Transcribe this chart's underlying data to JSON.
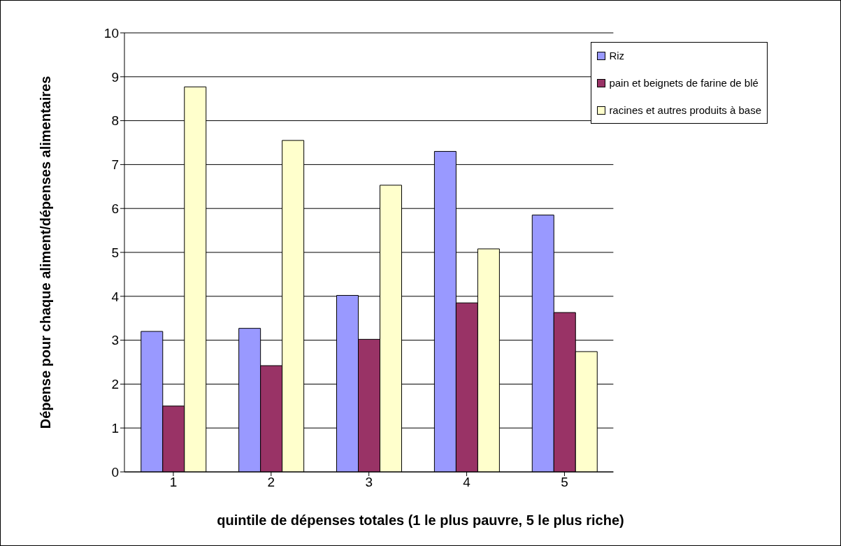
{
  "chart_data": {
    "type": "bar",
    "xlabel": "quintile de dépenses totales (1 le plus pauvre, 5 le plus riche)",
    "ylabel": "Dépense pour chaque aliment/dépenses alimentaires",
    "categories": [
      "1",
      "2",
      "3",
      "4",
      "5"
    ],
    "series": [
      {
        "name": "Riz",
        "color": "#9999ff",
        "values": [
          3.2,
          3.27,
          4.02,
          7.3,
          5.85
        ]
      },
      {
        "name": "pain et beignets de farine de blé",
        "color": "#993366",
        "values": [
          1.5,
          2.42,
          3.02,
          3.85,
          3.63
        ]
      },
      {
        "name": "racines et autres produits à base",
        "color": "#ffffcc",
        "values": [
          8.77,
          7.55,
          6.53,
          5.08,
          2.74
        ]
      }
    ],
    "ylim": [
      0,
      10
    ],
    "yticks": [
      0,
      1,
      2,
      3,
      4,
      5,
      6,
      7,
      8,
      9,
      10
    ],
    "grid": "y",
    "legend": "top right"
  }
}
